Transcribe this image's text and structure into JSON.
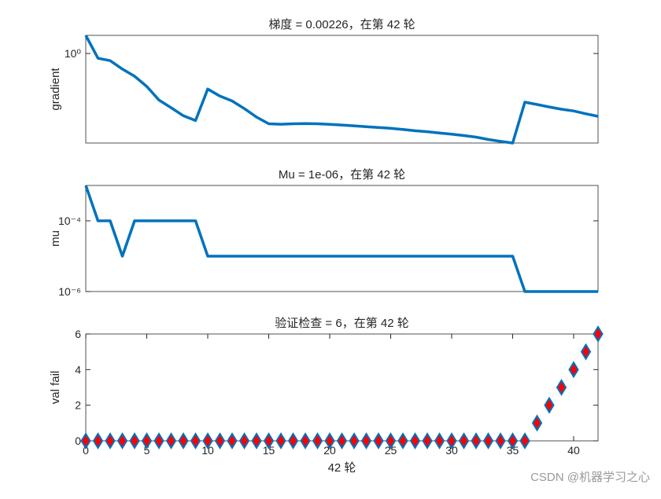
{
  "chart_data": [
    {
      "type": "line",
      "title": "梯度 = 0.00226，在第 42 轮",
      "ylabel": "gradient",
      "yscale": "log",
      "x": [
        0,
        1,
        2,
        3,
        4,
        5,
        6,
        7,
        8,
        9,
        10,
        11,
        12,
        13,
        14,
        15,
        16,
        17,
        18,
        19,
        20,
        21,
        22,
        23,
        24,
        25,
        26,
        27,
        28,
        29,
        30,
        31,
        32,
        33,
        34,
        35,
        36,
        37,
        38,
        39,
        40,
        41,
        42
      ],
      "values": [
        5.8,
        0.63,
        0.5,
        0.22,
        0.11,
        0.041,
        0.011,
        0.0052,
        0.0024,
        0.0015,
        0.032,
        0.016,
        0.01,
        0.0048,
        0.0021,
        0.0011,
        0.00105,
        0.0011,
        0.00112,
        0.0011,
        0.00104,
        0.00097,
        0.0009,
        0.00083,
        0.00077,
        0.00071,
        0.00063,
        0.00056,
        0.00051,
        0.00045,
        0.0004,
        0.00035,
        0.0003,
        0.00024,
        0.0002,
        0.00017,
        0.0089,
        0.0071,
        0.0056,
        0.0045,
        0.0038,
        0.0029,
        0.00226
      ],
      "color": "#0072bd",
      "xlim": [
        0,
        42
      ],
      "ylim": [
        0.00017,
        5.8
      ],
      "yticks": [
        {
          "value": 1,
          "label": "10⁰"
        }
      ]
    },
    {
      "type": "line",
      "title": "Mu = 1e-06，在第 42 轮",
      "ylabel": "mu",
      "yscale": "log",
      "x": [
        0,
        1,
        2,
        3,
        4,
        5,
        6,
        7,
        8,
        9,
        10,
        11,
        12,
        13,
        14,
        15,
        16,
        17,
        18,
        19,
        20,
        21,
        22,
        23,
        24,
        25,
        26,
        27,
        28,
        29,
        30,
        31,
        32,
        33,
        34,
        35,
        36,
        37,
        38,
        39,
        40,
        41,
        42
      ],
      "values": [
        0.001,
        0.0001,
        0.0001,
        1e-05,
        0.0001,
        0.0001,
        0.0001,
        0.0001,
        0.0001,
        0.0001,
        1e-05,
        1e-05,
        1e-05,
        1e-05,
        1e-05,
        1e-05,
        1e-05,
        1e-05,
        1e-05,
        1e-05,
        1e-05,
        1e-05,
        1e-05,
        1e-05,
        1e-05,
        1e-05,
        1e-05,
        1e-05,
        1e-05,
        1e-05,
        1e-05,
        1e-05,
        1e-05,
        1e-05,
        1e-05,
        1e-05,
        1e-06,
        1e-06,
        1e-06,
        1e-06,
        1e-06,
        1e-06,
        1e-06
      ],
      "color": "#0072bd",
      "xlim": [
        0,
        42
      ],
      "ylim": [
        1e-06,
        0.001
      ],
      "yticks": [
        {
          "value": 0.0001,
          "label": "10⁻⁴"
        },
        {
          "value": 1e-06,
          "label": "10⁻⁶"
        }
      ]
    },
    {
      "type": "scatter",
      "title": "验证检查 = 6，在第 42 轮",
      "ylabel": "val fail",
      "xlabel": "42 轮",
      "x": [
        0,
        1,
        2,
        3,
        4,
        5,
        6,
        7,
        8,
        9,
        10,
        11,
        12,
        13,
        14,
        15,
        16,
        17,
        18,
        19,
        20,
        21,
        22,
        23,
        24,
        25,
        26,
        27,
        28,
        29,
        30,
        31,
        32,
        33,
        34,
        35,
        36,
        37,
        38,
        39,
        40,
        41,
        42
      ],
      "values": [
        0,
        0,
        0,
        0,
        0,
        0,
        0,
        0,
        0,
        0,
        0,
        0,
        0,
        0,
        0,
        0,
        0,
        0,
        0,
        0,
        0,
        0,
        0,
        0,
        0,
        0,
        0,
        0,
        0,
        0,
        0,
        0,
        0,
        0,
        0,
        0,
        0,
        1,
        2,
        3,
        4,
        5,
        6
      ],
      "color": "#ff0000",
      "edgecolor": "#0072bd",
      "xlim": [
        0,
        42
      ],
      "ylim": [
        0,
        6
      ],
      "xticks": [
        0,
        5,
        10,
        15,
        20,
        25,
        30,
        35,
        40
      ],
      "yticks": [
        0,
        2,
        4,
        6
      ]
    }
  ],
  "watermark": "CSDN @机器学习之心"
}
